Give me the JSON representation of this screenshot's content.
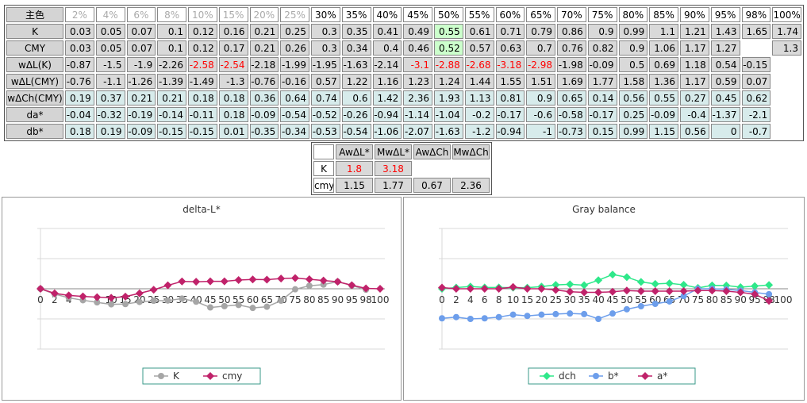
{
  "table": {
    "header": [
      "主色",
      "2%",
      "4%",
      "6%",
      "8%",
      "10%",
      "15%",
      "20%",
      "25%",
      "30%",
      "35%",
      "40%",
      "45%",
      "50%",
      "55%",
      "60%",
      "65%",
      "70%",
      "75%",
      "80%",
      "85%",
      "90%",
      "95%",
      "98%",
      "100%"
    ],
    "rows": [
      {
        "label": "K",
        "values": [
          0.03,
          0.05,
          0.07,
          0.1,
          0.12,
          0.16,
          0.21,
          0.25,
          0.3,
          0.35,
          0.41,
          0.49,
          0.55,
          0.61,
          0.71,
          0.79,
          0.86,
          0.9,
          0.99,
          1.1,
          1.21,
          1.43,
          1.65,
          1.74
        ],
        "fill": "#d9d9d9",
        "highlight": [
          12
        ]
      },
      {
        "label": "CMY",
        "values": [
          0.03,
          0.05,
          0.07,
          0.1,
          0.12,
          0.17,
          0.21,
          0.26,
          0.3,
          0.34,
          0.4,
          0.46,
          0.52,
          0.57,
          0.63,
          0.7,
          0.76,
          0.82,
          0.9,
          1.06,
          1.17,
          1.27,
          null,
          1.3
        ],
        "fill": "#d9d9d9",
        "highlight": [
          12
        ]
      },
      {
        "label": "wΔL(K)",
        "values": [
          -0.87,
          -1.5,
          -1.9,
          -2.26,
          -2.58,
          -2.54,
          -2.18,
          -1.99,
          -1.95,
          -1.63,
          -2.14,
          -3.1,
          -2.88,
          -2.68,
          -3.18,
          -2.98,
          -1.98,
          -0.09,
          0.5,
          0.69,
          1.18,
          0.54,
          -0.15,
          null
        ],
        "fill": "#d9d9d9",
        "alerts": [
          4,
          5,
          11,
          12,
          13,
          14,
          15
        ]
      },
      {
        "label": "wΔL(CMY)",
        "values": [
          -0.76,
          -1.1,
          -1.26,
          -1.39,
          -1.49,
          -1.3,
          -0.76,
          -0.16,
          0.57,
          1.22,
          1.16,
          1.23,
          1.24,
          1.44,
          1.55,
          1.51,
          1.69,
          1.77,
          1.58,
          1.36,
          1.17,
          0.59,
          0.07,
          null
        ],
        "fill": "#d9d9d9"
      },
      {
        "label": "wΔCh(CMY)",
        "values": [
          0.19,
          0.37,
          0.21,
          0.21,
          0.18,
          0.18,
          0.36,
          0.64,
          0.74,
          0.6,
          1.42,
          2.36,
          1.93,
          1.13,
          0.81,
          0.9,
          0.65,
          0.14,
          0.56,
          0.55,
          0.27,
          0.45,
          0.62,
          null
        ],
        "fill": "#d7ebeb"
      },
      {
        "label": "da*",
        "values": [
          -0.04,
          -0.32,
          -0.19,
          -0.14,
          -0.11,
          0.18,
          -0.09,
          -0.54,
          -0.52,
          -0.26,
          -0.94,
          -1.14,
          -1.04,
          -0.2,
          -0.17,
          -0.6,
          -0.58,
          -0.17,
          0.25,
          -0.09,
          -0.4,
          -1.37,
          -2.1,
          null
        ],
        "fill": "#d7ebeb"
      },
      {
        "label": "db*",
        "values": [
          0.18,
          0.19,
          -0.09,
          -0.15,
          -0.15,
          0.01,
          -0.35,
          -0.34,
          -0.53,
          -0.54,
          -1.06,
          -2.07,
          -1.63,
          -1.2,
          -0.94,
          -1,
          -0.73,
          0.15,
          0.99,
          1.15,
          0.56,
          0,
          -0.7,
          null
        ],
        "fill": "#d7ebeb"
      }
    ]
  },
  "summary": {
    "header": [
      "AwΔL*",
      "MwΔL*",
      "AwΔCh",
      "MwΔCh"
    ],
    "rows": [
      {
        "label": "K",
        "values": [
          1.8,
          3.18,
          null,
          null
        ],
        "alerts": [
          0,
          1
        ]
      },
      {
        "label": "cmy",
        "values": [
          1.15,
          1.77,
          0.67,
          2.36
        ]
      }
    ]
  },
  "chart_data": [
    {
      "type": "line",
      "title": "delta-L*",
      "categories": [
        0,
        2,
        4,
        6,
        8,
        10,
        15,
        20,
        25,
        30,
        35,
        40,
        45,
        50,
        55,
        60,
        65,
        70,
        75,
        80,
        85,
        90,
        95,
        98,
        100
      ],
      "series": [
        {
          "name": "K",
          "color": "#a6a6a6",
          "marker": "circle",
          "values": [
            0,
            -0.87,
            -1.5,
            -1.9,
            -2.26,
            -2.58,
            -2.54,
            -2.18,
            -1.99,
            -1.95,
            -1.63,
            -2.14,
            -3.1,
            -2.88,
            -2.68,
            -3.18,
            -2.98,
            -1.98,
            -0.09,
            0.5,
            0.69,
            1.18,
            0.54,
            -0.15,
            null
          ]
        },
        {
          "name": "cmy",
          "color": "#c0226a",
          "marker": "diamond",
          "values": [
            0,
            -0.76,
            -1.1,
            -1.26,
            -1.39,
            -1.49,
            -1.3,
            -0.76,
            -0.16,
            0.57,
            1.22,
            1.16,
            1.23,
            1.24,
            1.44,
            1.55,
            1.51,
            1.69,
            1.77,
            1.58,
            1.36,
            1.17,
            0.59,
            0.07,
            0
          ]
        }
      ],
      "ylim": [
        -10,
        10
      ],
      "yticks": [
        -10,
        -5,
        0,
        5,
        10
      ],
      "grid": true
    },
    {
      "type": "line",
      "title": "Gray balance",
      "categories": [
        0,
        2,
        4,
        6,
        8,
        10,
        15,
        20,
        25,
        30,
        35,
        40,
        45,
        50,
        55,
        60,
        65,
        70,
        75,
        80,
        85,
        90,
        95,
        98,
        100
      ],
      "series": [
        {
          "name": "dch",
          "color": "#2ee88a",
          "marker": "diamond",
          "values": [
            0,
            0.19,
            0.37,
            0.21,
            0.21,
            0.18,
            0.18,
            0.36,
            0.64,
            0.74,
            0.6,
            1.42,
            2.36,
            1.93,
            1.13,
            0.81,
            0.9,
            0.65,
            0.14,
            0.56,
            0.55,
            0.27,
            0.45,
            0.62,
            null
          ]
        },
        {
          "name": "b*",
          "color": "#6d9eeb",
          "marker": "circle",
          "values": [
            -4.9,
            -4.7,
            -5,
            -4.9,
            -4.7,
            -4.3,
            -4.5,
            -4.3,
            -4.2,
            -4.1,
            -4.2,
            -5,
            -4.1,
            -3.4,
            -2.9,
            -2.5,
            -2.1,
            -1.2,
            0,
            0,
            -0.1,
            -0.3,
            -0.6,
            -0.9,
            null
          ]
        },
        {
          "name": "a*",
          "color": "#c0226a",
          "marker": "diamond",
          "values": [
            0.2,
            0,
            0,
            0,
            0,
            0.3,
            0,
            0,
            -0.2,
            -0.5,
            -0.6,
            -0.6,
            -0.5,
            -0.3,
            -0.4,
            -0.4,
            -0.4,
            -0.4,
            -0.3,
            -0.3,
            -0.4,
            -0.6,
            -0.9,
            -2,
            null
          ]
        }
      ],
      "ylim": [
        -10,
        10
      ],
      "yticks": [
        -10,
        -5,
        0,
        5,
        10
      ],
      "grid": true
    }
  ]
}
